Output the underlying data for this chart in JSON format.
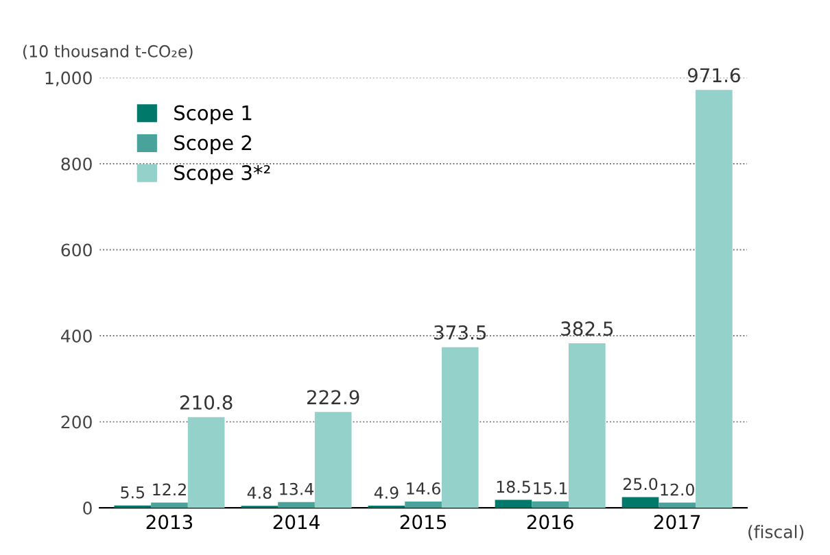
{
  "chart_data": {
    "type": "bar",
    "ylabel": "(10 thousand t-CO₂e)",
    "xlabel": "(fiscal)",
    "categories": [
      "2013",
      "2014",
      "2015",
      "2016",
      "2017"
    ],
    "series": [
      {
        "name": "Scope 1",
        "color": "#00796b",
        "values": [
          5.5,
          4.8,
          4.9,
          18.5,
          25.0
        ],
        "value_labels": [
          "5.5",
          "4.8",
          "4.9",
          "18.5",
          "25.0"
        ]
      },
      {
        "name": "Scope 2",
        "color": "#4aa39b",
        "values": [
          12.2,
          13.4,
          14.6,
          15.1,
          12.0
        ],
        "value_labels": [
          "12.2",
          "13.4",
          "14.6",
          "15.1",
          "12.0"
        ]
      },
      {
        "name": "Scope 3*²",
        "color": "#94d1ca",
        "values": [
          210.8,
          222.9,
          373.5,
          382.5,
          971.6
        ],
        "value_labels": [
          "210.8",
          "222.9",
          "373.5",
          "382.5",
          "971.6"
        ]
      }
    ],
    "ylim": [
      0,
      1000
    ],
    "yticks": [
      0,
      200,
      400,
      600,
      800,
      {
        "value": 1000,
        "label": "1,000"
      }
    ],
    "grid": "y",
    "legend": "top left"
  }
}
